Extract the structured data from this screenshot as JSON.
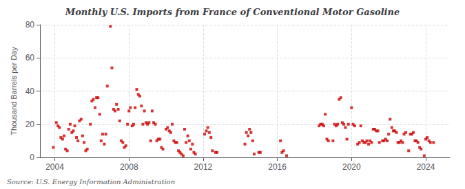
{
  "chart_data": {
    "type": "scatter",
    "title": "Monthly U.S. Imports from France of Conventional Motor Gasoline",
    "ylabel": "Thousand Barrels per Day",
    "source": "Source: U.S. Energy Information Administration",
    "color": "#cc0000",
    "marker": "square",
    "grid": true,
    "xlim": [
      2003.2,
      2025.3
    ],
    "xticks": [
      2004,
      2008,
      2012,
      2016,
      2020,
      2024
    ],
    "ylim": [
      0,
      80
    ],
    "yticks": [
      0,
      20,
      40,
      60,
      80
    ],
    "x": [
      2003.92,
      2004.08,
      2004.17,
      2004.25,
      2004.33,
      2004.42,
      2004.5,
      2004.58,
      2004.67,
      2004.75,
      2004.83,
      2004.92,
      2005.0,
      2005.08,
      2005.17,
      2005.25,
      2005.33,
      2005.42,
      2005.5,
      2005.58,
      2005.67,
      2005.75,
      2005.92,
      2006.0,
      2006.08,
      2006.17,
      2006.25,
      2006.33,
      2006.42,
      2006.5,
      2006.58,
      2006.67,
      2006.75,
      2006.83,
      2007.0,
      2007.08,
      2007.17,
      2007.25,
      2007.33,
      2007.42,
      2007.5,
      2007.58,
      2007.67,
      2007.75,
      2007.83,
      2007.92,
      2008.0,
      2008.08,
      2008.17,
      2008.25,
      2008.33,
      2008.42,
      2008.5,
      2008.58,
      2008.67,
      2008.75,
      2008.83,
      2008.92,
      2009.0,
      2009.08,
      2009.17,
      2009.25,
      2009.33,
      2009.42,
      2009.5,
      2009.58,
      2009.67,
      2009.75,
      2009.83,
      2010.0,
      2010.08,
      2010.17,
      2010.25,
      2010.33,
      2010.42,
      2010.5,
      2010.58,
      2010.67,
      2010.75,
      2010.83,
      2010.92,
      2011.0,
      2011.08,
      2011.17,
      2011.25,
      2011.33,
      2011.42,
      2011.5,
      2011.58,
      2012.08,
      2012.17,
      2012.25,
      2012.33,
      2012.42,
      2012.5,
      2012.67,
      2012.75,
      2014.25,
      2014.33,
      2014.42,
      2014.5,
      2014.58,
      2014.67,
      2014.75,
      2015.0,
      2015.08,
      2016.17,
      2016.25,
      2016.33,
      2016.5,
      2018.25,
      2018.33,
      2018.42,
      2018.5,
      2018.58,
      2018.67,
      2018.75,
      2019.0,
      2019.08,
      2019.17,
      2019.25,
      2019.33,
      2019.42,
      2019.5,
      2019.58,
      2019.67,
      2019.75,
      2019.83,
      2020.0,
      2020.08,
      2020.17,
      2020.33,
      2020.42,
      2020.5,
      2020.58,
      2020.67,
      2020.75,
      2020.83,
      2020.92,
      2021.0,
      2021.08,
      2021.17,
      2021.25,
      2021.33,
      2021.42,
      2021.5,
      2021.67,
      2021.75,
      2021.83,
      2021.92,
      2022.0,
      2022.08,
      2022.17,
      2022.25,
      2022.33,
      2022.42,
      2022.5,
      2022.58,
      2022.67,
      2022.75,
      2022.83,
      2022.92,
      2023.08,
      2023.17,
      2023.25,
      2023.33,
      2023.42,
      2023.5,
      2023.58,
      2023.67,
      2023.75,
      2023.92,
      2024.0,
      2024.08,
      2024.17,
      2024.25,
      2024.42
    ],
    "values": [
      6,
      21,
      19,
      18,
      12,
      11,
      13,
      5,
      4,
      17,
      20,
      15,
      16,
      19,
      12,
      10,
      22,
      23,
      13,
      9,
      4,
      5,
      20,
      34,
      35,
      30,
      36,
      36,
      26,
      10,
      14,
      8,
      14,
      43,
      79,
      54,
      29,
      28,
      32,
      29,
      22,
      10,
      9,
      6,
      7,
      20,
      28,
      30,
      19,
      20,
      30,
      41,
      38,
      37,
      31,
      20,
      28,
      21,
      20,
      21,
      10,
      28,
      21,
      20,
      10,
      11,
      11,
      6,
      5,
      17,
      18,
      16,
      15,
      20,
      10,
      9,
      9,
      4,
      3,
      2,
      1,
      17,
      9,
      13,
      10,
      5,
      8,
      3,
      2,
      14,
      16,
      18,
      15,
      12,
      4,
      3,
      3,
      8,
      15,
      13,
      17,
      15,
      10,
      2,
      3,
      3,
      10,
      3,
      4,
      1,
      19,
      20,
      20,
      19,
      26,
      11,
      10,
      10,
      20,
      19,
      20,
      35,
      36,
      21,
      20,
      18,
      11,
      20,
      30,
      20,
      19,
      8,
      9,
      19,
      10,
      9,
      9,
      10,
      8,
      10,
      9,
      17,
      17,
      16,
      16,
      9,
      10,
      10,
      11,
      10,
      14,
      23,
      18,
      16,
      16,
      15,
      9,
      9,
      10,
      9,
      14,
      15,
      4,
      14,
      14,
      15,
      10,
      10,
      9,
      6,
      5,
      1,
      11,
      12,
      10,
      9,
      9
    ]
  }
}
